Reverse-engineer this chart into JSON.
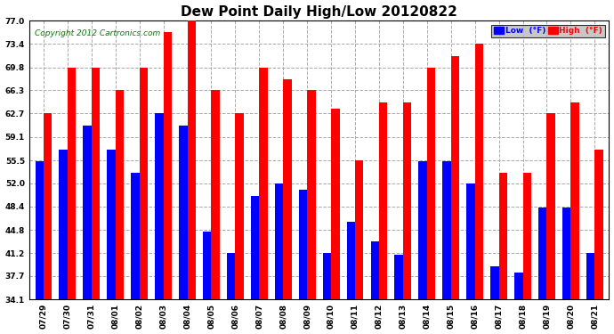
{
  "title": "Dew Point Daily High/Low 20120822",
  "copyright": "Copyright 2012 Cartronics.com",
  "legend_low": "Low  (°F)",
  "legend_high": "High  (°F)",
  "dates": [
    "07/29",
    "07/30",
    "07/31",
    "08/01",
    "08/02",
    "08/03",
    "08/04",
    "08/05",
    "08/06",
    "08/07",
    "08/08",
    "08/09",
    "08/10",
    "08/11",
    "08/12",
    "08/13",
    "08/14",
    "08/15",
    "08/16",
    "08/17",
    "08/18",
    "08/19",
    "08/20",
    "08/21"
  ],
  "high": [
    62.7,
    69.8,
    69.8,
    66.3,
    69.8,
    75.2,
    77.0,
    66.3,
    62.7,
    69.8,
    68.0,
    66.3,
    63.5,
    55.5,
    64.4,
    64.4,
    69.8,
    71.6,
    73.4,
    53.6,
    53.6,
    62.7,
    64.4,
    57.2
  ],
  "low": [
    55.4,
    57.2,
    60.8,
    57.2,
    53.6,
    62.7,
    60.8,
    44.6,
    41.2,
    50.0,
    52.0,
    51.0,
    41.2,
    46.0,
    43.0,
    41.0,
    55.4,
    55.4,
    52.0,
    39.2,
    38.3,
    48.2,
    48.2,
    41.2
  ],
  "ylim": [
    34.1,
    77.0
  ],
  "yticks": [
    34.1,
    37.7,
    41.2,
    44.8,
    48.4,
    52.0,
    55.5,
    59.1,
    62.7,
    66.3,
    69.8,
    73.4,
    77.0
  ],
  "bar_width": 0.35,
  "low_color": "#0000ff",
  "high_color": "#ff0000",
  "bg_color": "#ffffff",
  "grid_color": "#aaaaaa",
  "title_fontsize": 11,
  "tick_fontsize": 6.5,
  "copyright_fontsize": 6.5
}
